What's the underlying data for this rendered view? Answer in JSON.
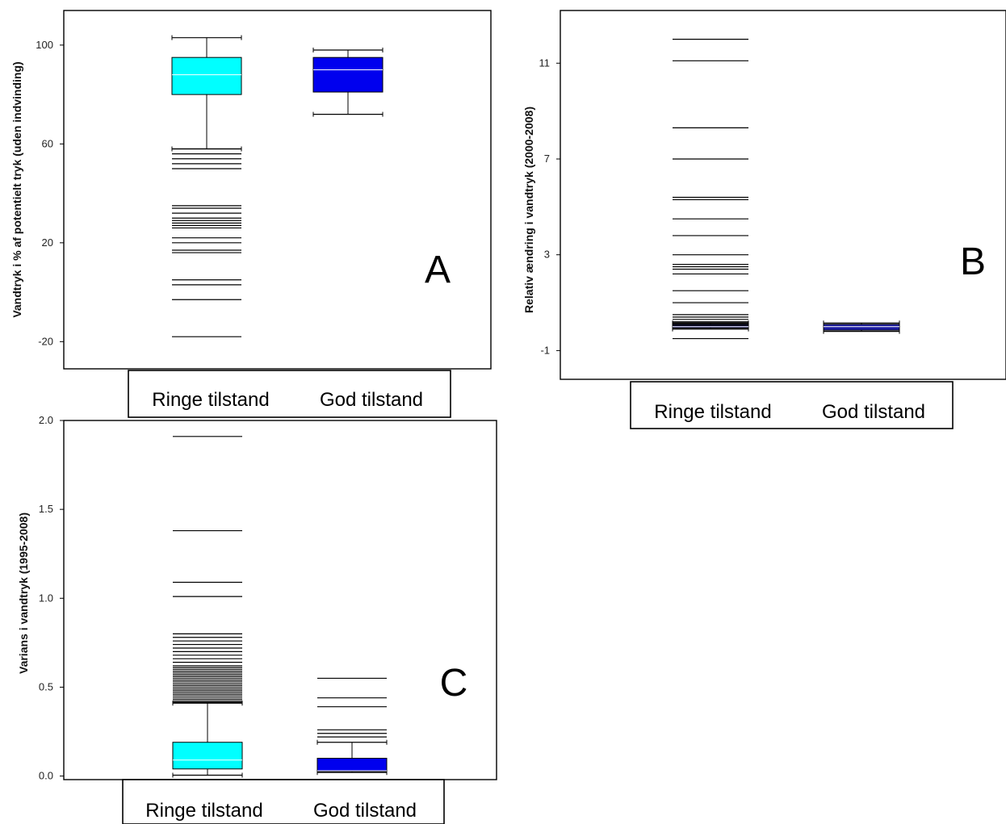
{
  "chart_data": [
    {
      "type": "box",
      "panel": "A",
      "ylabel": "Vandtryk i % af potentielt tryk (uden indvinding)",
      "ylim": [
        -31,
        114
      ],
      "yticks": [
        -20,
        20,
        60,
        100
      ],
      "categories": [
        "Ringe tilstand",
        "God tilstand"
      ],
      "boxes": [
        {
          "category": "Ringe tilstand",
          "color": "#00ffff",
          "whisker_low": 58,
          "q1": 80,
          "median": 88,
          "q3": 95,
          "whisker_high": 103,
          "outliers": [
            58,
            56,
            54,
            52,
            50,
            35,
            34,
            32,
            30,
            29,
            28,
            27,
            26,
            22,
            20,
            17,
            16,
            5,
            3,
            -3,
            -18
          ]
        },
        {
          "category": "God tilstand",
          "color": "#0000ee",
          "whisker_low": 72,
          "q1": 81,
          "median": 90,
          "q3": 95,
          "whisker_high": 98,
          "outliers": []
        }
      ]
    },
    {
      "type": "box",
      "panel": "B",
      "ylabel": "Relativ ændring i vandtryk (2000-2008)",
      "ylim": [
        -2.2,
        13.2
      ],
      "yticks": [
        -1,
        3,
        7,
        11
      ],
      "categories": [
        "Ringe tilstand",
        "God tilstand"
      ],
      "boxes": [
        {
          "category": "Ringe tilstand",
          "color": "#1a1aa0",
          "whisker_low": -0.1,
          "q1": -0.05,
          "median": 0.0,
          "q3": 0.1,
          "whisker_high": 0.15,
          "outliers": [
            12.0,
            11.1,
            8.3,
            7.0,
            5.4,
            5.3,
            4.5,
            3.8,
            3.0,
            2.6,
            2.5,
            2.4,
            2.2,
            1.5,
            1.0,
            0.5,
            0.4,
            0.3,
            0.2,
            0.15,
            0.1,
            0.05,
            -0.05,
            -0.1,
            -0.5
          ]
        },
        {
          "category": "God tilstand",
          "color": "#1a1aa0",
          "whisker_low": -0.2,
          "q1": -0.15,
          "median": 0.0,
          "q3": 0.1,
          "whisker_high": 0.15,
          "outliers": []
        }
      ]
    },
    {
      "type": "box",
      "panel": "C",
      "ylabel": "Varians i vandtryk (1995-2008)",
      "ylim": [
        -0.02,
        2.0
      ],
      "yticks": [
        "0.0",
        "0.5",
        "1.0",
        "1.5",
        "2.0"
      ],
      "categories": [
        "Ringe tilstand",
        "God tilstand"
      ],
      "boxes": [
        {
          "category": "Ringe tilstand",
          "color": "#00ffff",
          "whisker_low": 0.005,
          "q1": 0.04,
          "median": 0.09,
          "q3": 0.19,
          "whisker_high": 0.41,
          "outliers": [
            1.91,
            1.38,
            1.09,
            1.01,
            0.8,
            0.78,
            0.76,
            0.74,
            0.72,
            0.7,
            0.68,
            0.66,
            0.64,
            0.62,
            0.61,
            0.6,
            0.59,
            0.58,
            0.57,
            0.56,
            0.55,
            0.54,
            0.53,
            0.52,
            0.51,
            0.5,
            0.49,
            0.48,
            0.47,
            0.46,
            0.45,
            0.44,
            0.43,
            0.42,
            0.415
          ]
        },
        {
          "category": "God tilstand",
          "color": "#0000ee",
          "whisker_low": 0.02,
          "q1": 0.025,
          "median": 0.03,
          "q3": 0.1,
          "whisker_high": 0.19,
          "outliers": [
            0.55,
            0.44,
            0.39,
            0.26,
            0.24,
            0.22
          ]
        }
      ]
    }
  ],
  "labels": {
    "A": "A",
    "B": "B",
    "C": "C",
    "cat_ringe": "Ringe tilstand",
    "cat_god": "God tilstand"
  }
}
